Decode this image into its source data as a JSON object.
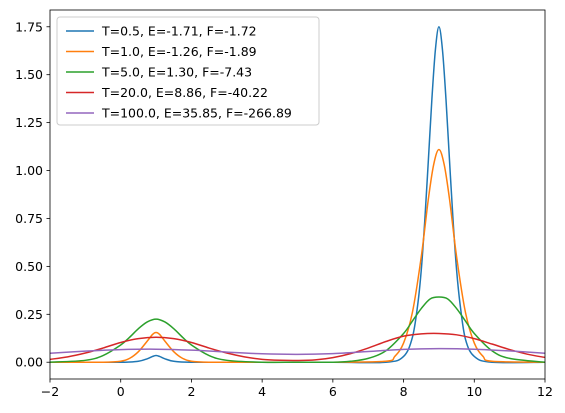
{
  "chart_data": {
    "type": "line",
    "title": "",
    "xlabel": "",
    "ylabel": "",
    "xlim": [
      -2,
      12
    ],
    "ylim": [
      -0.0875,
      1.8375
    ],
    "xticks": [
      -2,
      0,
      2,
      4,
      6,
      8,
      10,
      12
    ],
    "xtick_labels": [
      "−2",
      "0",
      "2",
      "4",
      "6",
      "8",
      "10",
      "12"
    ],
    "yticks": [
      0.0,
      0.25,
      0.5,
      0.75,
      1.0,
      1.25,
      1.5,
      1.75
    ],
    "ytick_labels": [
      "0.00",
      "0.25",
      "0.50",
      "0.75",
      "1.00",
      "1.25",
      "1.50",
      "1.75"
    ],
    "grid": false,
    "legend_position": "upper-left",
    "series": [
      {
        "name": "T=0.5, E=-1.71, F=-1.72",
        "color": "#1f77b4",
        "x": [
          -2,
          0,
          0.5,
          0.75,
          0.9,
          1.0,
          1.1,
          1.25,
          1.5,
          2,
          4,
          6,
          7.5,
          8.0,
          8.25,
          8.4,
          8.5,
          8.6,
          8.7,
          8.8,
          8.9,
          9.0,
          9.1,
          9.2,
          9.3,
          9.4,
          9.5,
          9.6,
          9.75,
          10.0,
          10.5,
          12
        ],
        "y": [
          0.0,
          0.0,
          0.005,
          0.018,
          0.03,
          0.035,
          0.03,
          0.018,
          0.005,
          0.0,
          0.0,
          0.0,
          0.0,
          0.03,
          0.13,
          0.3,
          0.48,
          0.74,
          1.05,
          1.37,
          1.63,
          1.75,
          1.63,
          1.37,
          1.05,
          0.74,
          0.48,
          0.3,
          0.12,
          0.03,
          0.0,
          0.0
        ]
      },
      {
        "name": "T=1.0, E=-1.26, F=-1.89",
        "color": "#ff7f0e",
        "x": [
          -2,
          -0.5,
          0,
          0.25,
          0.5,
          0.75,
          0.9,
          1.0,
          1.1,
          1.25,
          1.5,
          1.75,
          2.0,
          2.5,
          4,
          6,
          7.5,
          7.75,
          8.0,
          8.25,
          8.5,
          8.7,
          8.85,
          9.0,
          9.15,
          9.3,
          9.5,
          9.75,
          10.0,
          10.25,
          10.5,
          12
        ],
        "y": [
          0.0,
          0.0,
          0.005,
          0.02,
          0.055,
          0.11,
          0.145,
          0.155,
          0.145,
          0.11,
          0.055,
          0.02,
          0.005,
          0.0,
          0.0,
          0.0,
          0.005,
          0.03,
          0.1,
          0.26,
          0.55,
          0.85,
          1.03,
          1.11,
          1.03,
          0.85,
          0.55,
          0.26,
          0.1,
          0.03,
          0.005,
          0.0
        ]
      },
      {
        "name": "T=5.0, E=1.30, F=-7.43",
        "color": "#2ca02c",
        "x": [
          -2,
          -1,
          -0.5,
          0,
          0.25,
          0.5,
          0.75,
          1.0,
          1.25,
          1.5,
          1.75,
          2.0,
          2.5,
          3.0,
          4,
          5,
          6,
          6.5,
          7.0,
          7.5,
          8.0,
          8.25,
          8.5,
          8.75,
          9.0,
          9.25,
          9.5,
          9.75,
          10.0,
          10.5,
          11.0,
          12
        ],
        "y": [
          0.0,
          0.01,
          0.035,
          0.09,
          0.13,
          0.175,
          0.21,
          0.225,
          0.21,
          0.175,
          0.13,
          0.09,
          0.035,
          0.01,
          0.0,
          0.0,
          0.0,
          0.005,
          0.02,
          0.06,
          0.15,
          0.215,
          0.28,
          0.33,
          0.34,
          0.33,
          0.28,
          0.215,
          0.15,
          0.06,
          0.02,
          0.0
        ]
      },
      {
        "name": "T=20.0, E=8.86, F=-40.22",
        "color": "#d62728",
        "x": [
          -2,
          -1.5,
          -1,
          -0.5,
          0,
          0.5,
          1.0,
          1.5,
          2.0,
          2.5,
          3.0,
          3.5,
          4.0,
          4.5,
          5.0,
          5.5,
          6.0,
          6.5,
          7.0,
          7.5,
          8.0,
          8.5,
          9.0,
          9.5,
          10.0,
          10.5,
          11.0,
          11.5,
          12
        ],
        "y": [
          0.015,
          0.028,
          0.048,
          0.074,
          0.103,
          0.123,
          0.13,
          0.123,
          0.103,
          0.074,
          0.048,
          0.028,
          0.015,
          0.01,
          0.009,
          0.012,
          0.024,
          0.045,
          0.074,
          0.108,
          0.136,
          0.148,
          0.15,
          0.143,
          0.123,
          0.095,
          0.066,
          0.042,
          0.025
        ]
      },
      {
        "name": "T=100.0, E=35.85, F=-266.89",
        "color": "#9467bd",
        "x": [
          -2,
          -1,
          0,
          1,
          2,
          3,
          4,
          5,
          6,
          7,
          8,
          9,
          10,
          11,
          12
        ],
        "y": [
          0.047,
          0.058,
          0.066,
          0.068,
          0.063,
          0.053,
          0.044,
          0.041,
          0.045,
          0.056,
          0.067,
          0.071,
          0.068,
          0.059,
          0.047
        ]
      }
    ]
  }
}
